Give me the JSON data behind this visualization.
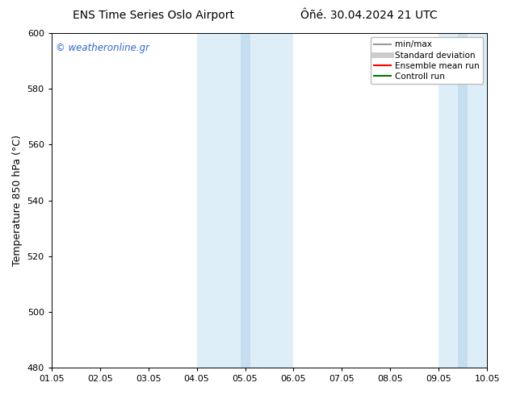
{
  "title_left": "ENS Time Series Oslo Airport",
  "title_right": "Ôñé. 30.04.2024 21 UTC",
  "ylabel": "Temperature 850 hPa (°C)",
  "xlim_start": 0,
  "xlim_end": 9,
  "ylim_bottom": 480,
  "ylim_top": 600,
  "yticks": [
    480,
    500,
    520,
    540,
    560,
    580,
    600
  ],
  "xtick_positions": [
    0,
    1,
    2,
    3,
    4,
    5,
    6,
    7,
    8,
    9
  ],
  "xtick_labels": [
    "01.05",
    "02.05",
    "03.05",
    "04.05",
    "05.05",
    "06.05",
    "07.05",
    "08.05",
    "09.05",
    "10.05"
  ],
  "shaded_outer_1": {
    "x_start": 3.0,
    "x_end": 5.0,
    "color": "#ddeef8"
  },
  "shaded_inner_1": {
    "x_start": 3.9,
    "x_end": 4.1,
    "color": "#c5dff0"
  },
  "shaded_outer_2": {
    "x_start": 8.0,
    "x_end": 9.0,
    "color": "#ddeef8"
  },
  "shaded_inner_2": {
    "x_start": 8.4,
    "x_end": 8.6,
    "color": "#c5dff0"
  },
  "watermark_text": "© weatheronline.gr",
  "watermark_color": "#3366cc",
  "legend_items": [
    {
      "label": "min/max",
      "color": "#999999",
      "lw": 1.5
    },
    {
      "label": "Standard deviation",
      "color": "#cccccc",
      "lw": 5
    },
    {
      "label": "Ensemble mean run",
      "color": "#ff0000",
      "lw": 1.5
    },
    {
      "label": "Controll run",
      "color": "#007700",
      "lw": 1.5
    }
  ],
  "bg_color": "#ffffff",
  "tick_fontsize": 8,
  "label_fontsize": 9,
  "title_fontsize": 10
}
